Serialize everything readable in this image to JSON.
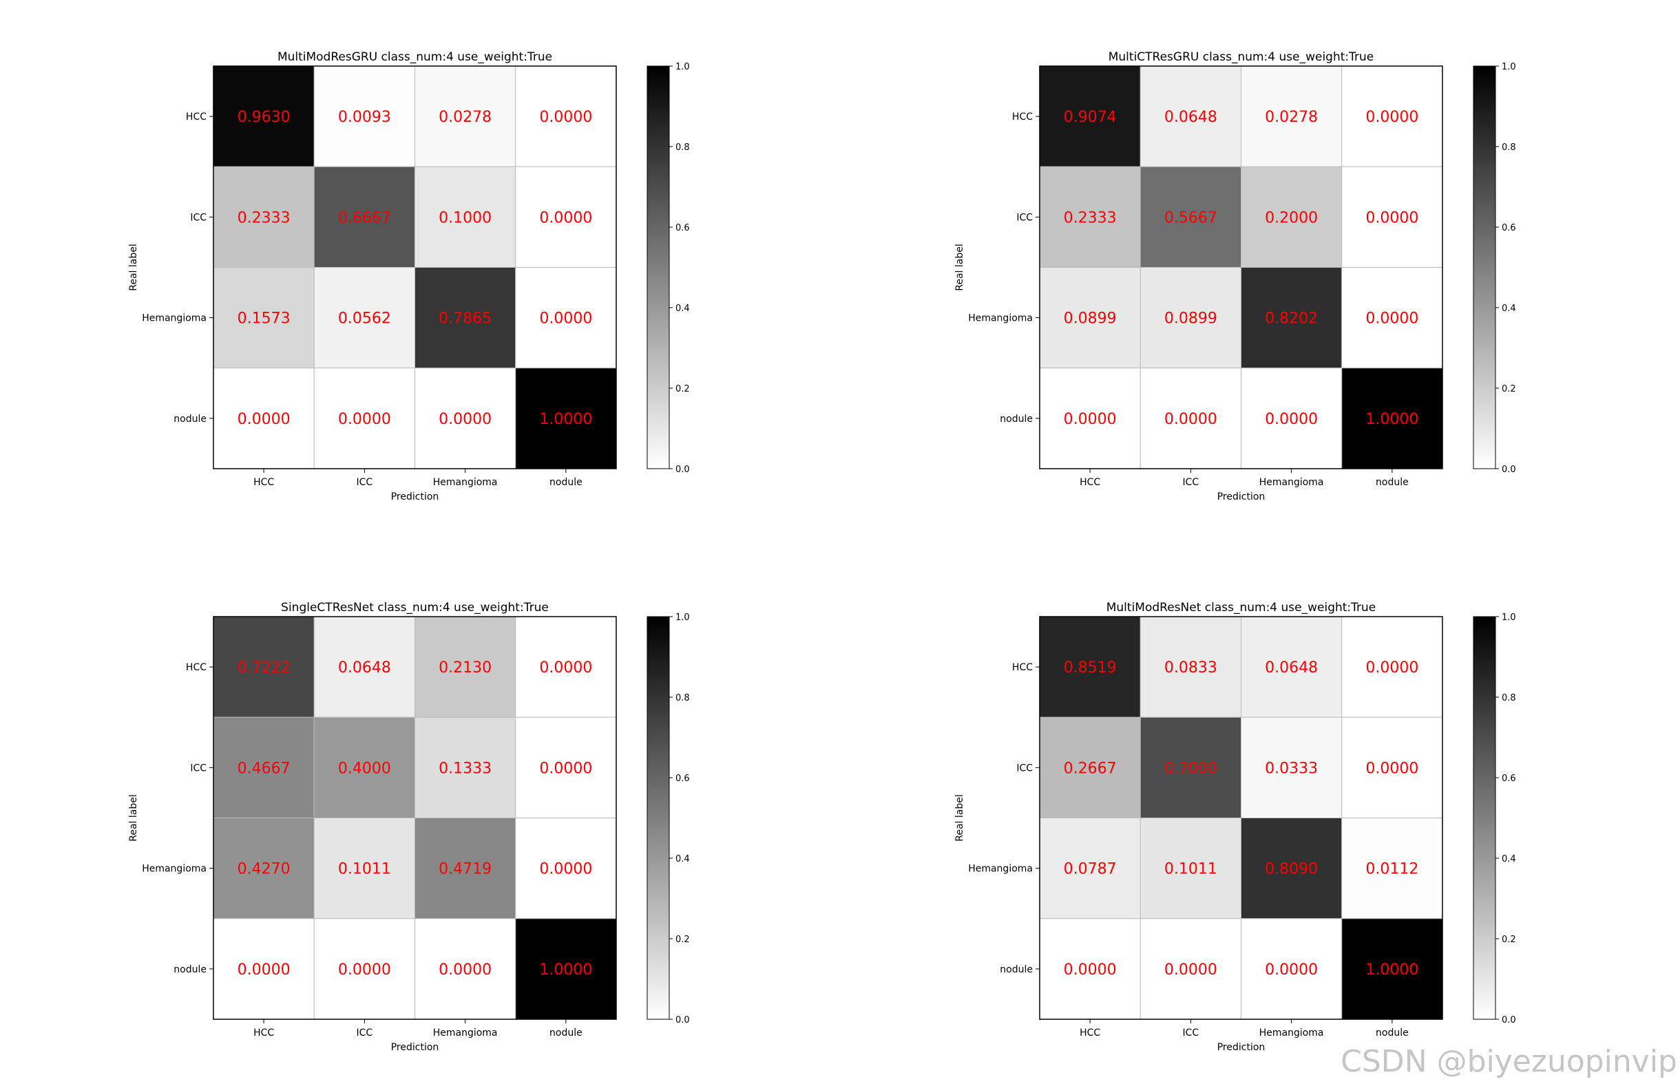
{
  "chart_data": [
    {
      "type": "heatmap",
      "title": "MultiModResGRU class_num:4 use_weight:True",
      "xlabel": "Prediction",
      "ylabel": "Real label",
      "x_categories": [
        "HCC",
        "ICC",
        "Hemangioma",
        "nodule"
      ],
      "y_categories": [
        "HCC",
        "ICC",
        "Hemangioma",
        "nodule"
      ],
      "values": [
        [
          0.963,
          0.0093,
          0.0278,
          0.0
        ],
        [
          0.2333,
          0.6667,
          0.1,
          0.0
        ],
        [
          0.1573,
          0.0562,
          0.7865,
          0.0
        ],
        [
          0.0,
          0.0,
          0.0,
          1.0
        ]
      ],
      "value_labels": [
        [
          "0.9630",
          "0.0093",
          "0.0278",
          "0.0000"
        ],
        [
          "0.2333",
          "0.6667",
          "0.1000",
          "0.0000"
        ],
        [
          "0.1573",
          "0.0562",
          "0.7865",
          "0.0000"
        ],
        [
          "0.0000",
          "0.0000",
          "0.0000",
          "1.0000"
        ]
      ],
      "colorbar": {
        "range": [
          0.0,
          1.0
        ],
        "ticks": [
          "0.0",
          "0.2",
          "0.4",
          "0.6",
          "0.8",
          "1.0"
        ],
        "colormap": "greys"
      }
    },
    {
      "type": "heatmap",
      "title": "MultiCTResGRU class_num:4 use_weight:True",
      "xlabel": "Prediction",
      "ylabel": "Real label",
      "x_categories": [
        "HCC",
        "ICC",
        "Hemangioma",
        "nodule"
      ],
      "y_categories": [
        "HCC",
        "ICC",
        "Hemangioma",
        "nodule"
      ],
      "values": [
        [
          0.9074,
          0.0648,
          0.0278,
          0.0
        ],
        [
          0.2333,
          0.5667,
          0.2,
          0.0
        ],
        [
          0.0899,
          0.0899,
          0.8202,
          0.0
        ],
        [
          0.0,
          0.0,
          0.0,
          1.0
        ]
      ],
      "value_labels": [
        [
          "0.9074",
          "0.0648",
          "0.0278",
          "0.0000"
        ],
        [
          "0.2333",
          "0.5667",
          "0.2000",
          "0.0000"
        ],
        [
          "0.0899",
          "0.0899",
          "0.8202",
          "0.0000"
        ],
        [
          "0.0000",
          "0.0000",
          "0.0000",
          "1.0000"
        ]
      ],
      "colorbar": {
        "range": [
          0.0,
          1.0
        ],
        "ticks": [
          "0.0",
          "0.2",
          "0.4",
          "0.6",
          "0.8",
          "1.0"
        ],
        "colormap": "greys"
      }
    },
    {
      "type": "heatmap",
      "title": "SingleCTResNet class_num:4 use_weight:True",
      "xlabel": "Prediction",
      "ylabel": "Real label",
      "x_categories": [
        "HCC",
        "ICC",
        "Hemangioma",
        "nodule"
      ],
      "y_categories": [
        "HCC",
        "ICC",
        "Hemangioma",
        "nodule"
      ],
      "values": [
        [
          0.7222,
          0.0648,
          0.213,
          0.0
        ],
        [
          0.4667,
          0.4,
          0.1333,
          0.0
        ],
        [
          0.427,
          0.1011,
          0.4719,
          0.0
        ],
        [
          0.0,
          0.0,
          0.0,
          1.0
        ]
      ],
      "value_labels": [
        [
          "0.7222",
          "0.0648",
          "0.2130",
          "0.0000"
        ],
        [
          "0.4667",
          "0.4000",
          "0.1333",
          "0.0000"
        ],
        [
          "0.4270",
          "0.1011",
          "0.4719",
          "0.0000"
        ],
        [
          "0.0000",
          "0.0000",
          "0.0000",
          "1.0000"
        ]
      ],
      "colorbar": {
        "range": [
          0.0,
          1.0
        ],
        "ticks": [
          "0.0",
          "0.2",
          "0.4",
          "0.6",
          "0.8",
          "1.0"
        ],
        "colormap": "greys"
      }
    },
    {
      "type": "heatmap",
      "title": "MultiModResNet class_num:4 use_weight:True",
      "xlabel": "Prediction",
      "ylabel": "Real label",
      "x_categories": [
        "HCC",
        "ICC",
        "Hemangioma",
        "nodule"
      ],
      "y_categories": [
        "HCC",
        "ICC",
        "Hemangioma",
        "nodule"
      ],
      "values": [
        [
          0.8519,
          0.0833,
          0.0648,
          0.0
        ],
        [
          0.2667,
          0.7,
          0.0333,
          0.0
        ],
        [
          0.0787,
          0.1011,
          0.809,
          0.0112
        ],
        [
          0.0,
          0.0,
          0.0,
          1.0
        ]
      ],
      "value_labels": [
        [
          "0.8519",
          "0.0833",
          "0.0648",
          "0.0000"
        ],
        [
          "0.2667",
          "0.7000",
          "0.0333",
          "0.0000"
        ],
        [
          "0.0787",
          "0.1011",
          "0.8090",
          "0.0112"
        ],
        [
          "0.0000",
          "0.0000",
          "0.0000",
          "1.0000"
        ]
      ],
      "colorbar": {
        "range": [
          0.0,
          1.0
        ],
        "ticks": [
          "0.0",
          "0.2",
          "0.4",
          "0.6",
          "0.8",
          "1.0"
        ],
        "colormap": "greys"
      }
    }
  ],
  "style": {
    "value_text_color": "#ff0000",
    "grid_color": "#bbbbbb",
    "frame_color": "#000000"
  },
  "watermark": "CSDN @biyezuopinvip"
}
